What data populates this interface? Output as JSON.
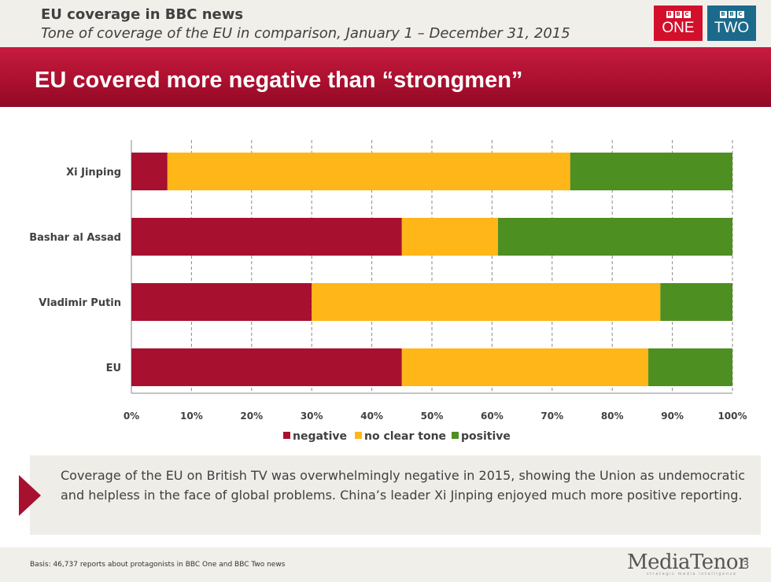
{
  "header": {
    "title": "EU coverage in BBC news",
    "subtitle": "Tone of coverage of the EU in comparison, January 1 – December 31, 2015"
  },
  "logos": {
    "bbc_blocks": [
      "B",
      "B",
      "C"
    ],
    "bbc_one": "ONE",
    "bbc_two": "TWO",
    "bbc_one_color": "#d2102b",
    "bbc_two_color": "#1b6a8c"
  },
  "band": {
    "title": "EU covered more negative than “strongmen”"
  },
  "chart_data": {
    "type": "bar",
    "orientation": "horizontal",
    "stacked": true,
    "categories": [
      "Xi Jinping",
      "Bashar al Assad",
      "Vladimir Putin",
      "EU"
    ],
    "series": [
      {
        "name": "negative",
        "color": "#a8102f",
        "values": [
          6,
          45,
          30,
          45
        ]
      },
      {
        "name": "no clear tone",
        "color": "#ffb618",
        "values": [
          67,
          16,
          58,
          41
        ]
      },
      {
        "name": "positive",
        "color": "#4e8f21",
        "values": [
          27,
          39,
          12,
          14
        ]
      }
    ],
    "xlim": [
      0,
      100
    ],
    "x_ticks": [
      "0%",
      "10%",
      "20%",
      "30%",
      "40%",
      "50%",
      "60%",
      "70%",
      "80%",
      "90%",
      "100%"
    ],
    "grid": "vertical-dashed",
    "legend": "bottom"
  },
  "callout": {
    "text": "Coverage of the EU on British TV was overwhelmingly negative in 2015, showing the Union as undemocratic and helpless in the face of global problems. China’s leader Xi Jinping enjoyed much more positive reporting."
  },
  "footer": {
    "basis": "Basis: 46,737 reports about protagonists in BBC One and BBC Two news",
    "logo_text": "MediaTenor",
    "logo_tagline": "strategic media intelligence",
    "page_number": "3"
  }
}
